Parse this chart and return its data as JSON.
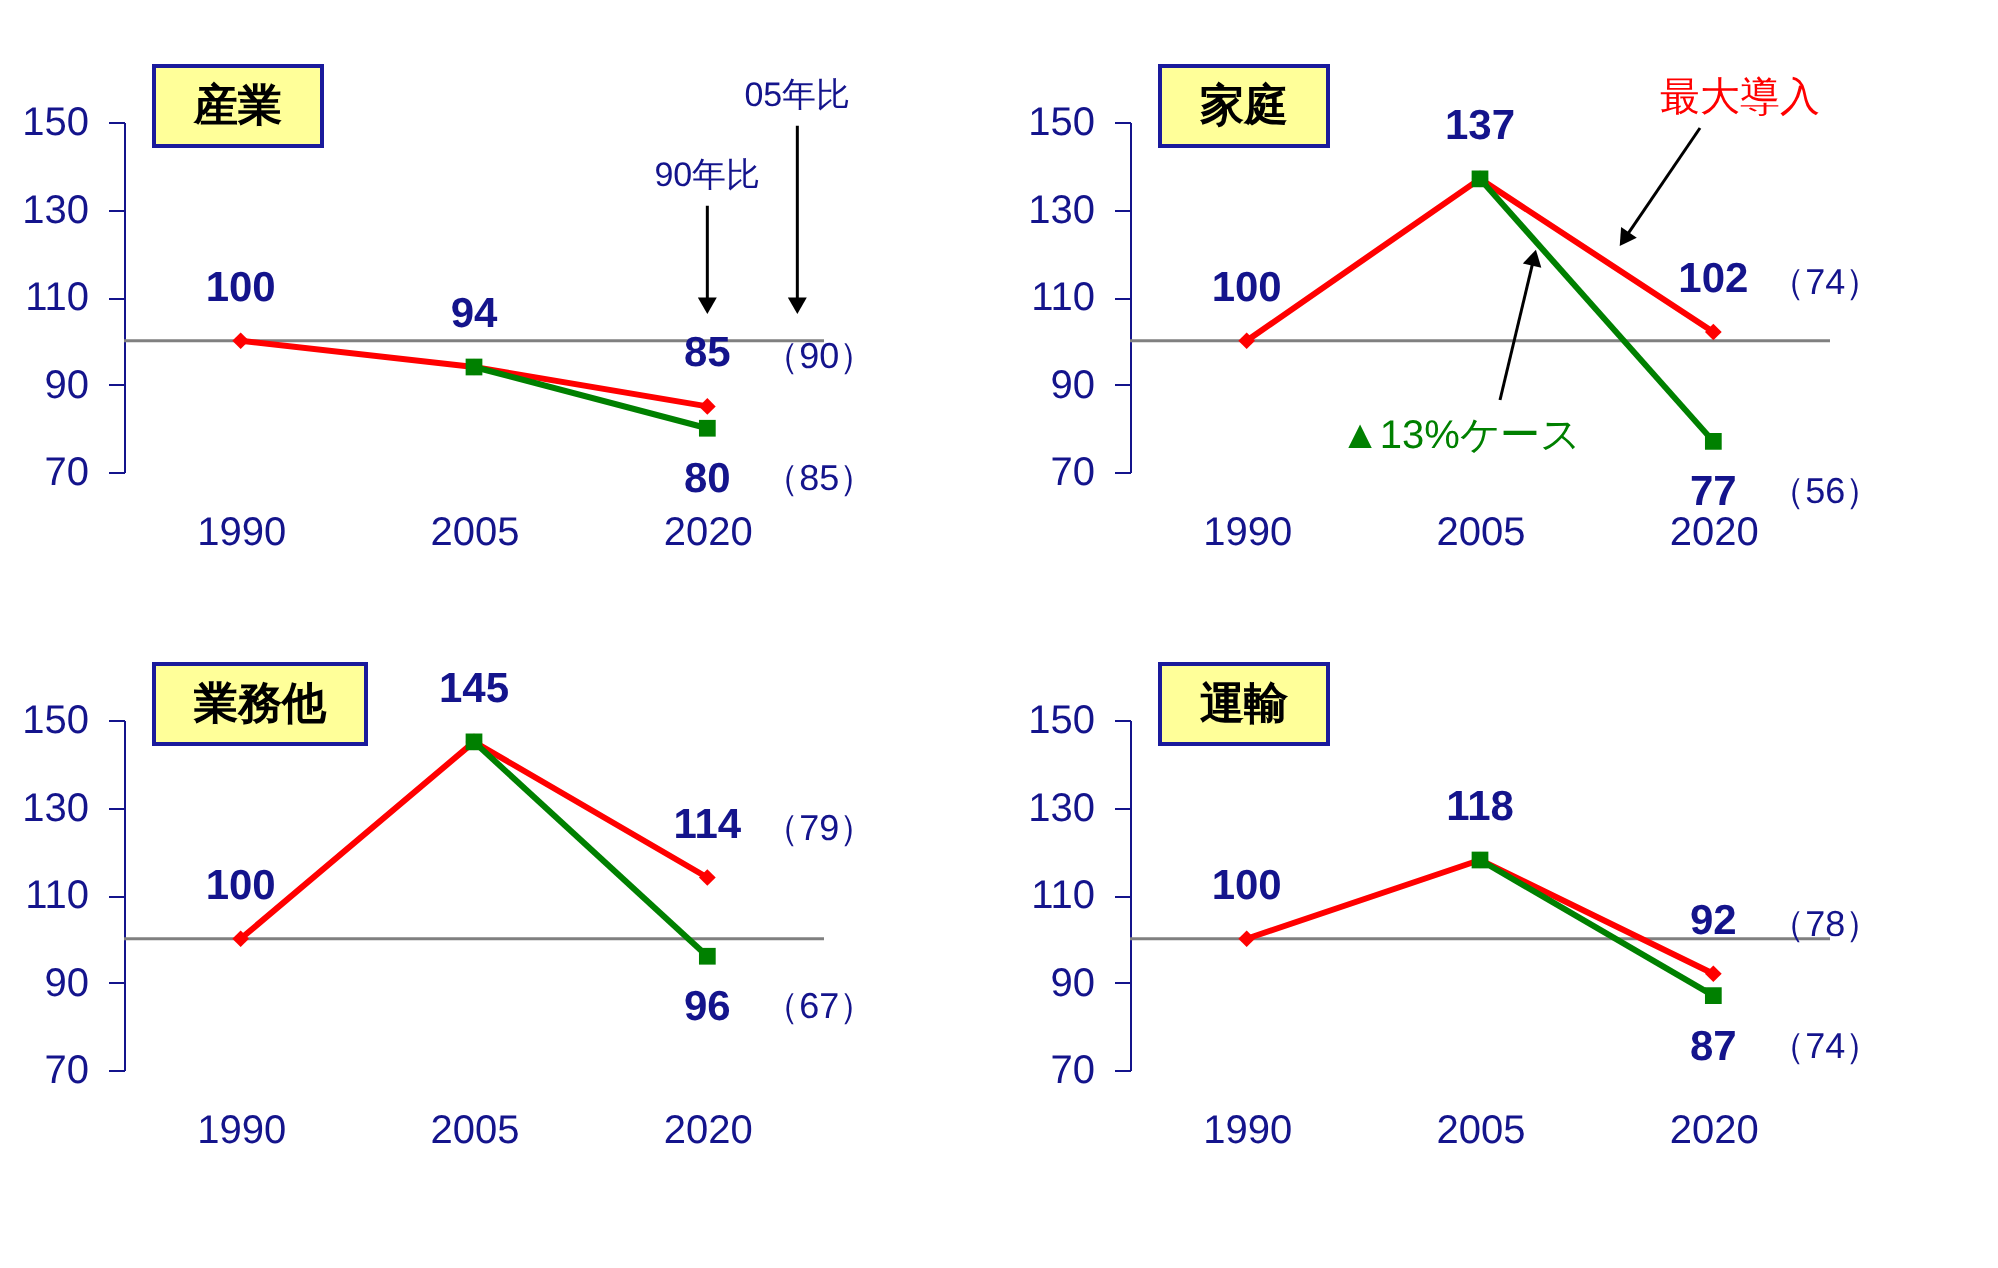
{
  "chart_data": [
    {
      "type": "line",
      "title": "産業",
      "categories": [
        "1990",
        "2005",
        "2020"
      ],
      "ylim": [
        70,
        150
      ],
      "yticks": [
        70,
        90,
        110,
        130,
        150
      ],
      "grid": false,
      "ref_lines": [
        {
          "axis": "y",
          "value": 100,
          "color": "#808080"
        }
      ],
      "series": [
        {
          "color": "#ff0000",
          "marker": "diamond",
          "values": [
            100,
            94,
            85
          ],
          "value_labels": [
            "100",
            "94",
            "85"
          ]
        },
        {
          "color": "#008000",
          "marker": "square",
          "values": [
            null,
            94,
            80
          ],
          "value_labels": [
            null,
            null,
            "80"
          ]
        }
      ],
      "annotations": [
        {
          "text": "90年比",
          "x": "2020",
          "y": 108
        },
        {
          "text": "05年比",
          "y": 108
        },
        {
          "text": "（90）",
          "x": "2020",
          "y": 85
        },
        {
          "text": "（85）",
          "x": "2020",
          "y": 80
        }
      ]
    },
    {
      "type": "line",
      "title": "家庭",
      "categories": [
        "1990",
        "2005",
        "2020"
      ],
      "ylim": [
        70,
        150
      ],
      "yticks": [
        70,
        90,
        110,
        130,
        150
      ],
      "grid": false,
      "ref_lines": [
        {
          "axis": "y",
          "value": 100,
          "color": "#808080"
        }
      ],
      "series": [
        {
          "name": "最大導入",
          "color": "#ff0000",
          "marker": "diamond",
          "values": [
            100,
            137,
            102
          ],
          "value_labels": [
            "100",
            "137",
            "102"
          ]
        },
        {
          "name": "▲13%ケース",
          "color": "#008000",
          "marker": "square",
          "values": [
            null,
            137,
            77
          ],
          "value_labels": [
            null,
            null,
            "77"
          ]
        }
      ],
      "annotations": [
        {
          "text": "（74）",
          "x": "2020",
          "y": 102
        },
        {
          "text": "（56）",
          "x": "2020",
          "y": 77
        }
      ]
    },
    {
      "type": "line",
      "title": "業務他",
      "categories": [
        "1990",
        "2005",
        "2020"
      ],
      "ylim": [
        70,
        150
      ],
      "yticks": [
        70,
        90,
        110,
        130,
        150
      ],
      "grid": false,
      "ref_lines": [
        {
          "axis": "y",
          "value": 100,
          "color": "#808080"
        }
      ],
      "series": [
        {
          "color": "#ff0000",
          "marker": "diamond",
          "values": [
            100,
            145,
            114
          ],
          "value_labels": [
            "100",
            "145",
            "114"
          ]
        },
        {
          "color": "#008000",
          "marker": "square",
          "values": [
            null,
            145,
            96
          ],
          "value_labels": [
            null,
            null,
            "96"
          ]
        }
      ],
      "annotations": [
        {
          "text": "（79）",
          "x": "2020",
          "y": 114
        },
        {
          "text": "（67）",
          "x": "2020",
          "y": 96
        }
      ]
    },
    {
      "type": "line",
      "title": "運輸",
      "categories": [
        "1990",
        "2005",
        "2020"
      ],
      "ylim": [
        70,
        150
      ],
      "yticks": [
        70,
        90,
        110,
        130,
        150
      ],
      "grid": false,
      "ref_lines": [
        {
          "axis": "y",
          "value": 100,
          "color": "#808080"
        }
      ],
      "series": [
        {
          "color": "#ff0000",
          "marker": "diamond",
          "values": [
            100,
            118,
            92
          ],
          "value_labels": [
            "100",
            "118",
            "92"
          ]
        },
        {
          "color": "#008000",
          "marker": "square",
          "values": [
            null,
            118,
            87
          ],
          "value_labels": [
            null,
            null,
            "87"
          ]
        }
      ],
      "annotations": [
        {
          "text": "（78）",
          "x": "2020",
          "y": 92
        },
        {
          "text": "（74）",
          "x": "2020",
          "y": 87
        }
      ]
    }
  ]
}
